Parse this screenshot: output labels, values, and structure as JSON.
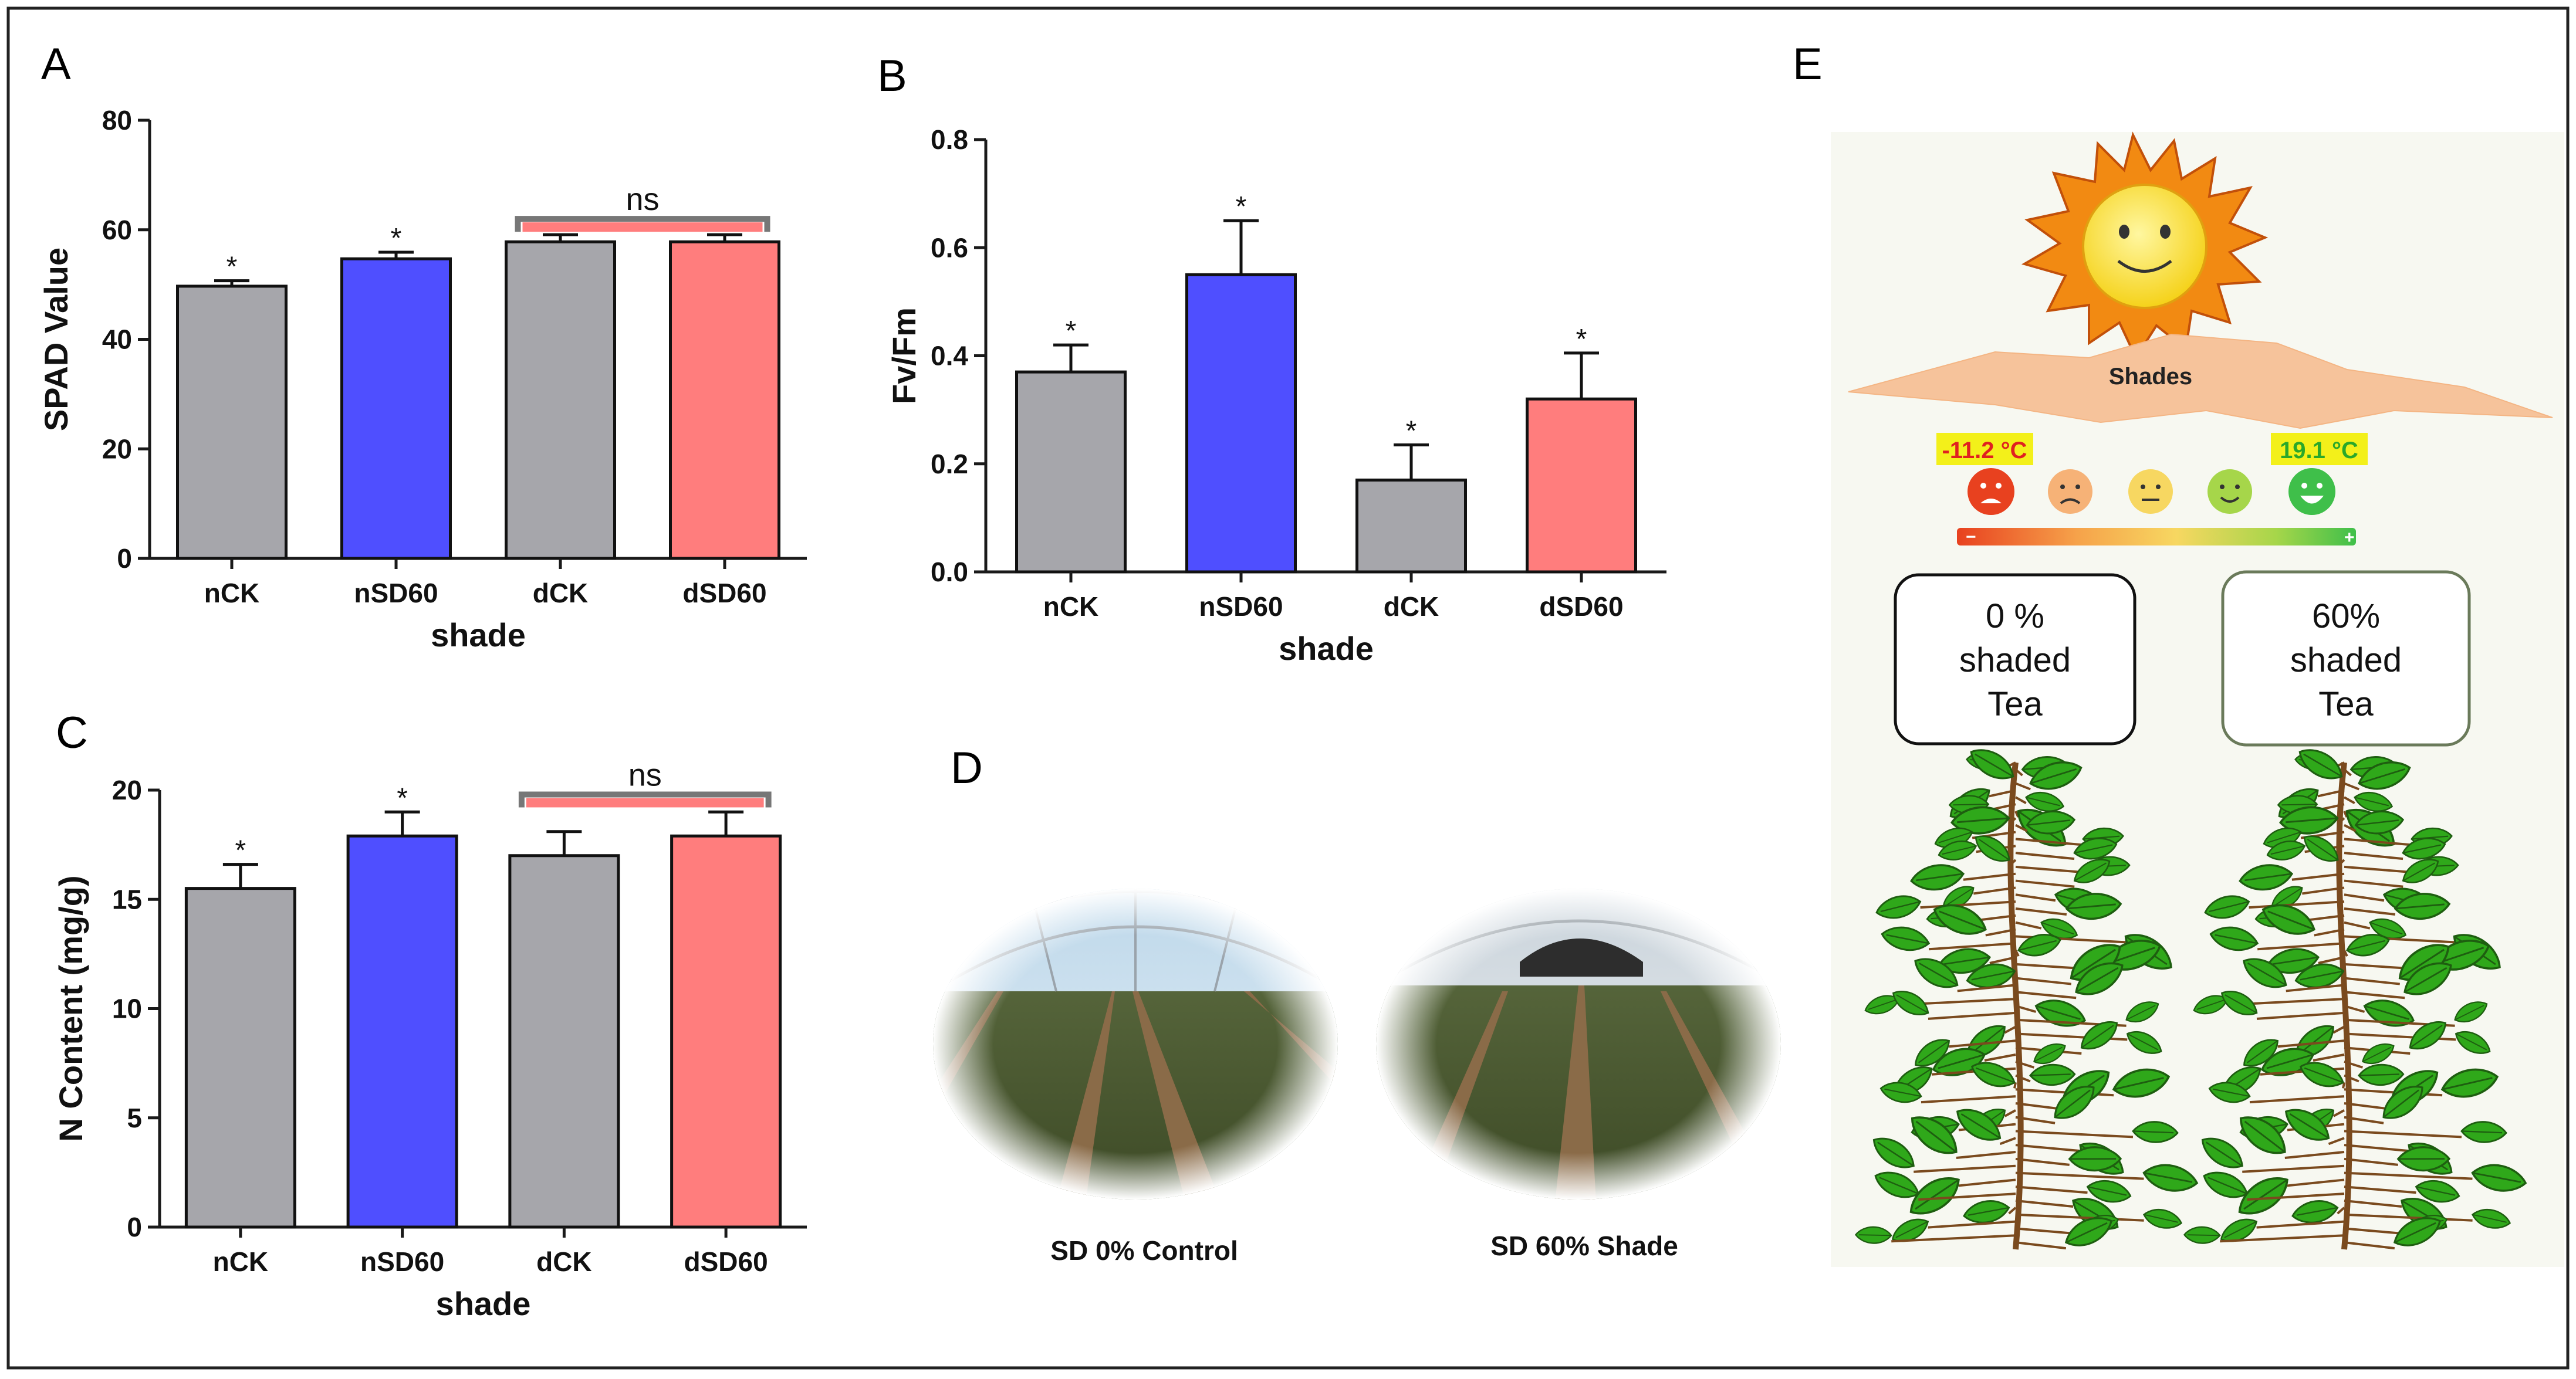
{
  "panels": {
    "A": {
      "label": "A"
    },
    "B": {
      "label": "B"
    },
    "C": {
      "label": "C"
    },
    "D": {
      "label": "D",
      "photo_left_caption": "SD 0% Control",
      "photo_right_caption": "SD 60% Shade"
    },
    "E": {
      "label": "E",
      "shades_label": "Shades",
      "temp_low": "-11.2 °C",
      "temp_high": "19.1 °C",
      "scale_minus": "−",
      "scale_plus": "+",
      "box_left": {
        "line1": "0 %",
        "line2": "shaded",
        "line3": "Tea"
      },
      "box_right": {
        "line1": "60%",
        "line2": "shaded",
        "line3": "Tea"
      }
    }
  },
  "colors": {
    "gray": "#a6a6ab",
    "blue": "#4f4fff",
    "pink": "#ff7d7d",
    "axis": "#1a1a1a"
  },
  "chart_data": [
    {
      "id": "A",
      "type": "bar",
      "title": "",
      "categories": [
        "nCK",
        "nSD60",
        "dCK",
        "dSD60"
      ],
      "values": [
        49.7,
        54.7,
        57.8,
        57.8
      ],
      "errors": [
        1.0,
        1.2,
        1.3,
        1.3
      ],
      "sig": [
        "*",
        "*",
        "",
        ""
      ],
      "bracket": {
        "from": 2,
        "to": 3,
        "label": "ns",
        "y": 62
      },
      "xlabel": "shade",
      "ylabel": "SPAD Value",
      "ylim": [
        0,
        80
      ],
      "yticks": [
        0,
        20,
        40,
        60,
        80
      ],
      "ytick_labels": [
        "0",
        "20",
        "40",
        "60",
        "80"
      ]
    },
    {
      "id": "B",
      "type": "bar",
      "title": "",
      "categories": [
        "nCK",
        "nSD60",
        "dCK",
        "dSD60"
      ],
      "values": [
        0.37,
        0.55,
        0.17,
        0.32
      ],
      "errors": [
        0.05,
        0.1,
        0.065,
        0.085
      ],
      "sig": [
        "*",
        "*",
        "*",
        "*"
      ],
      "bracket": null,
      "xlabel": "shade",
      "ylabel": "Fv/Fm",
      "ylim": [
        0,
        0.8
      ],
      "yticks": [
        0,
        0.2,
        0.4,
        0.6,
        0.8
      ],
      "ytick_labels": [
        "0.0",
        "0.2",
        "0.4",
        "0.6",
        "0.8"
      ]
    },
    {
      "id": "C",
      "type": "bar",
      "title": "",
      "categories": [
        "nCK",
        "nSD60",
        "dCK",
        "dSD60"
      ],
      "values": [
        15.5,
        17.9,
        17.0,
        17.9
      ],
      "errors": [
        1.1,
        1.1,
        1.1,
        1.1
      ],
      "sig": [
        "*",
        "*",
        "",
        ""
      ],
      "bracket": {
        "from": 2,
        "to": 3,
        "label": "ns",
        "y": 19.8
      },
      "xlabel": "shade",
      "ylabel": "N Content (mg/g)",
      "ylim": [
        0,
        20
      ],
      "yticks": [
        0,
        5,
        10,
        15,
        20
      ],
      "ytick_labels": [
        "0",
        "5",
        "10",
        "15",
        "20"
      ]
    }
  ]
}
